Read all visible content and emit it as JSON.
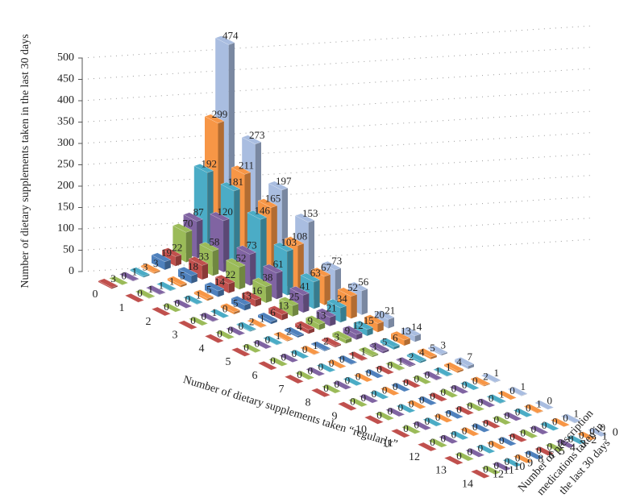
{
  "chart_data": {
    "type": "bar3d",
    "y_label": "Number of dietary supplements taken in the last 30 days",
    "x_label": "Number of dietary supplements taken “regularly”",
    "z_label": [
      "Number of prescription",
      "medications taken in",
      "the last 30 days"
    ],
    "categories": [
      "0",
      "1",
      "2",
      "3",
      "4",
      "5",
      "6",
      "7",
      "8",
      "9",
      "10",
      "11",
      "12",
      "13",
      "14"
    ],
    "ylim": [
      0,
      500
    ],
    "yticks": [
      0,
      50,
      100,
      150,
      200,
      250,
      300,
      350,
      400,
      450,
      500
    ],
    "grid": true,
    "series": [
      {
        "name": "0",
        "color": "#a9bde0",
        "values": [
          474,
          273,
          197,
          153,
          73,
          56,
          21,
          14,
          3,
          7,
          1,
          1,
          0,
          1,
          0
        ]
      },
      {
        "name": "1",
        "color": "#f79646",
        "values": [
          299,
          211,
          165,
          108,
          67,
          52,
          20,
          13,
          5,
          4,
          2,
          0,
          1,
          0,
          0
        ]
      },
      {
        "name": "2",
        "color": "#4bacc6",
        "values": [
          192,
          181,
          146,
          103,
          63,
          34,
          15,
          6,
          4,
          1,
          0,
          1,
          0,
          0,
          0
        ]
      },
      {
        "name": "3",
        "color": "#8064a2",
        "values": [
          87,
          120,
          73,
          61,
          41,
          21,
          12,
          5,
          2,
          1,
          0,
          0,
          0,
          0,
          0
        ]
      },
      {
        "name": "4",
        "color": "#9bbb59",
        "values": [
          70,
          58,
          52,
          38,
          25,
          13,
          9,
          3,
          1,
          0,
          0,
          0,
          0,
          0,
          0
        ]
      },
      {
        "name": "5",
        "color": "#c0504d",
        "values": [
          22,
          33,
          22,
          16,
          13,
          9,
          3,
          1,
          0,
          0,
          0,
          0,
          0,
          0,
          0
        ]
      },
      {
        "name": "6",
        "color": "#4f81bd",
        "values": [
          19,
          18,
          14,
          13,
          6,
          4,
          2,
          1,
          0,
          0,
          0,
          0,
          0,
          0,
          0
        ]
      },
      {
        "name": "8",
        "color": "#f79646",
        "values": [
          3,
          5,
          5,
          5,
          1,
          2,
          1,
          0,
          0,
          0,
          0,
          0,
          0,
          0,
          0
        ]
      },
      {
        "name": "9",
        "color": "#4bacc6",
        "values": [
          3,
          1,
          1,
          0,
          2,
          1,
          0,
          0,
          0,
          0,
          0,
          0,
          0,
          0,
          0
        ]
      },
      {
        "name": "10",
        "color": "#8064a2",
        "values": [
          1,
          1,
          0,
          1,
          0,
          0,
          0,
          0,
          0,
          0,
          0,
          0,
          0,
          0,
          0
        ]
      },
      {
        "name": "11",
        "color": "#9bbb59",
        "values": [
          0,
          1,
          0,
          0,
          0,
          0,
          0,
          0,
          0,
          0,
          0,
          0,
          0,
          0,
          0
        ]
      },
      {
        "name": "12",
        "color": "#c0504d",
        "values": [
          3,
          0,
          0,
          0,
          0,
          0,
          0,
          0,
          0,
          0,
          0,
          0,
          0,
          0,
          0
        ]
      }
    ]
  }
}
